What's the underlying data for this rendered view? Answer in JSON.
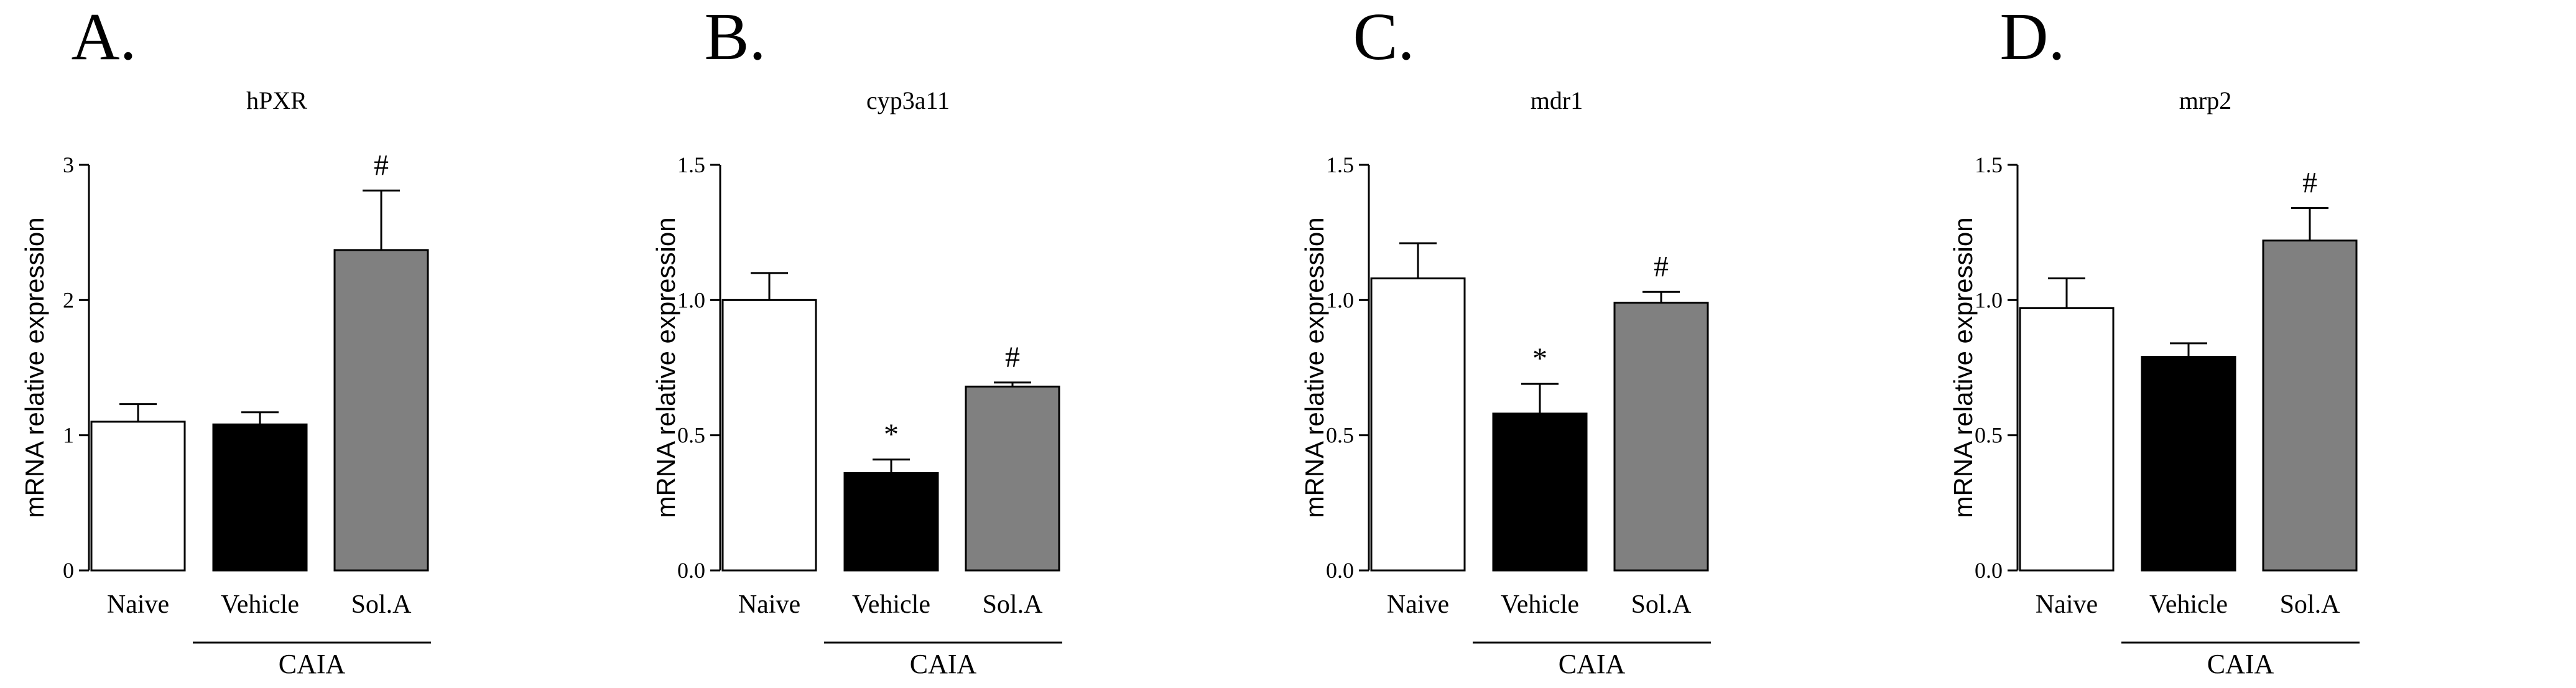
{
  "chart_data": [
    {
      "type": "bar",
      "panel": "A.",
      "title": "hPXR",
      "ylabel": "mRNA relative expression",
      "ylim": [
        0,
        3
      ],
      "yticks": [
        "0",
        "1",
        "2",
        "3"
      ],
      "categories": [
        "Naive",
        "Vehicle",
        "Sol.A"
      ],
      "values": [
        1.1,
        1.08,
        2.37
      ],
      "errors": [
        0.13,
        0.09,
        0.44
      ],
      "significance": [
        "",
        "",
        "#"
      ],
      "group_label": "CAIA"
    },
    {
      "type": "bar",
      "panel": "B.",
      "title": "cyp3a11",
      "ylabel": "mRNA relative expression",
      "ylim": [
        0,
        1.5
      ],
      "yticks": [
        "0.0",
        "0.5",
        "1.0",
        "1.5"
      ],
      "categories": [
        "Naive",
        "Vehicle",
        "Sol.A"
      ],
      "values": [
        1.0,
        0.36,
        0.68
      ],
      "errors": [
        0.1,
        0.05,
        0.015
      ],
      "significance": [
        "",
        "*",
        "#"
      ],
      "group_label": "CAIA"
    },
    {
      "type": "bar",
      "panel": "C.",
      "title": "mdr1",
      "ylabel": "mRNA relative expression",
      "ylim": [
        0,
        1.5
      ],
      "yticks": [
        "0.0",
        "0.5",
        "1.0",
        "1.5"
      ],
      "categories": [
        "Naive",
        "Vehicle",
        "Sol.A"
      ],
      "values": [
        1.08,
        0.58,
        0.99
      ],
      "errors": [
        0.13,
        0.11,
        0.04
      ],
      "significance": [
        "",
        "*",
        "#"
      ],
      "group_label": "CAIA"
    },
    {
      "type": "bar",
      "panel": "D.",
      "title": "mrp2",
      "ylabel": "mRNA relative expression",
      "ylim": [
        0,
        1.5
      ],
      "yticks": [
        "0.0",
        "0.5",
        "1.0",
        "1.5"
      ],
      "categories": [
        "Naive",
        "Vehicle",
        "Sol.A"
      ],
      "values": [
        0.97,
        0.79,
        1.22
      ],
      "errors": [
        0.11,
        0.05,
        0.12
      ],
      "significance": [
        "",
        "",
        "#"
      ],
      "group_label": "CAIA"
    }
  ],
  "colors": {
    "naive_fill": "#ffffff",
    "vehicle_fill": "#000000",
    "sola_fill": "#808080",
    "stroke": "#000000"
  }
}
